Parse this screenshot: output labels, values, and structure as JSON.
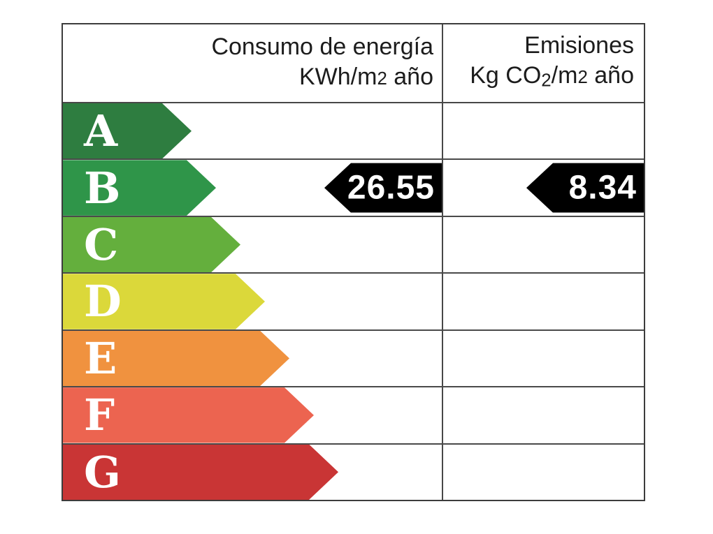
{
  "header": {
    "consumption": {
      "line1": "Consumo de energía",
      "unit_prefix": "KWh/m",
      "unit_exp": "2",
      "unit_suffix": " año"
    },
    "emissions": {
      "line1": "Emisiones",
      "unit_prefix": "Kg CO",
      "unit_sub": "2",
      "unit_mid": "/m",
      "unit_exp": "2",
      "unit_suffix": " año"
    }
  },
  "ratings": [
    {
      "grade": "A",
      "color": "#2e7d40"
    },
    {
      "grade": "B",
      "color": "#2f9549"
    },
    {
      "grade": "C",
      "color": "#64af3d"
    },
    {
      "grade": "D",
      "color": "#dbd83a"
    },
    {
      "grade": "E",
      "color": "#f0923f"
    },
    {
      "grade": "F",
      "color": "#ec6450"
    },
    {
      "grade": "G",
      "color": "#c93535"
    }
  ],
  "indicator": {
    "rating": "B",
    "consumption_value": "26.55",
    "emissions_value": "8.34",
    "arrow_color": "#000000",
    "text_color": "#ffffff"
  },
  "chart_data": {
    "type": "bar",
    "title": "",
    "categories": [
      "A",
      "B",
      "C",
      "D",
      "E",
      "F",
      "G"
    ],
    "category_colors": [
      "#2e7d40",
      "#2f9549",
      "#64af3d",
      "#dbd83a",
      "#f0923f",
      "#ec6450",
      "#c93535"
    ],
    "columns": [
      "Consumo de energía KWh/m2 año",
      "Emisiones Kg CO2/m2 año"
    ],
    "assigned_rating": "B",
    "series": [
      {
        "name": "Consumo de energía KWh/m2 año",
        "rating": "B",
        "value": 26.55
      },
      {
        "name": "Emisiones Kg CO2/m2 año",
        "rating": "B",
        "value": 8.34
      }
    ],
    "legend_position": "none",
    "grid": true
  }
}
